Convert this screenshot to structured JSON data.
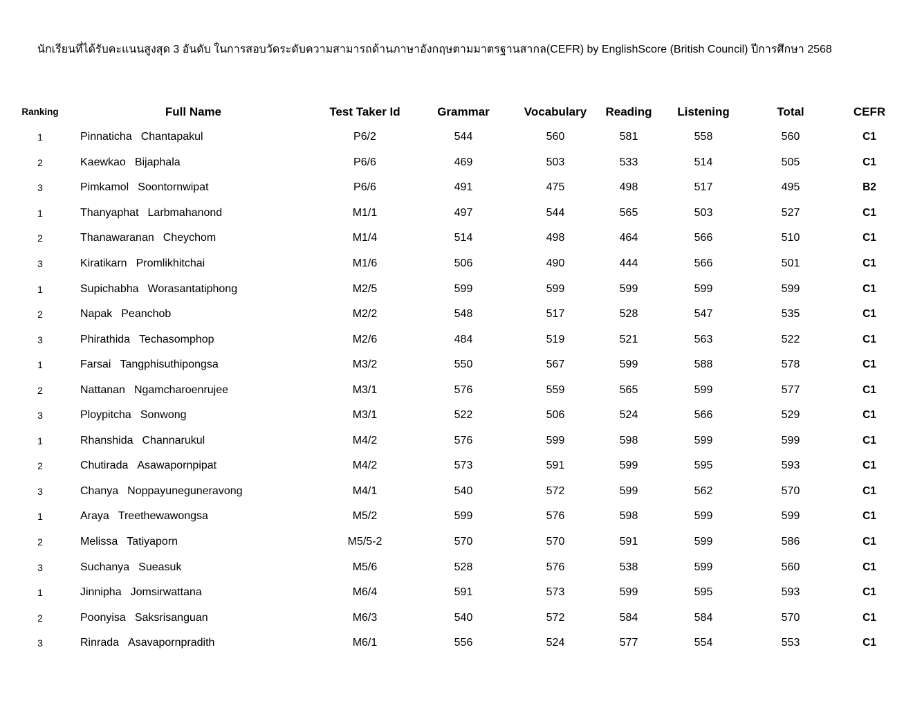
{
  "document": {
    "title": "นักเรียนที่ได้รับคะแนนสูงสุด 3 อันดับ ในการสอบวัดระดับความสามารถด้านภาษาอังกฤษตามมาตรฐานสากล(CEFR) by EnglishScore (British Council) ปีการศึกษา 2568"
  },
  "table": {
    "headers": [
      "Ranking",
      "Full Name",
      "Test Taker Id",
      "Grammar",
      "Vocabulary",
      "Reading",
      "Listening",
      "Total",
      "CEFR"
    ],
    "rows": [
      {
        "rank": "1",
        "first": "Pinnaticha",
        "last": "Chantapakul",
        "id": "P6/2",
        "grammar": "544",
        "vocabulary": "560",
        "reading": "581",
        "listening": "558",
        "total": "560",
        "cefr": "C1"
      },
      {
        "rank": "2",
        "first": "Kaewkao",
        "last": "Bijaphala",
        "id": "P6/6",
        "grammar": "469",
        "vocabulary": "503",
        "reading": "533",
        "listening": "514",
        "total": "505",
        "cefr": "C1"
      },
      {
        "rank": "3",
        "first": "Pimkamol",
        "last": "Soontornwipat",
        "id": "P6/6",
        "grammar": "491",
        "vocabulary": "475",
        "reading": "498",
        "listening": "517",
        "total": "495",
        "cefr": "B2"
      },
      {
        "rank": "1",
        "first": "Thanyaphat",
        "last": "Larbmahanond",
        "id": "M1/1",
        "grammar": "497",
        "vocabulary": "544",
        "reading": "565",
        "listening": "503",
        "total": "527",
        "cefr": "C1"
      },
      {
        "rank": "2",
        "first": "Thanawaranan",
        "last": "Cheychom",
        "id": "M1/4",
        "grammar": "514",
        "vocabulary": "498",
        "reading": "464",
        "listening": "566",
        "total": "510",
        "cefr": "C1"
      },
      {
        "rank": "3",
        "first": "Kiratikarn",
        "last": "Promlikhitchai",
        "id": "M1/6",
        "grammar": "506",
        "vocabulary": "490",
        "reading": "444",
        "listening": "566",
        "total": "501",
        "cefr": "C1"
      },
      {
        "rank": "1",
        "first": "Supichabha",
        "last": "Worasantatiphong",
        "id": "M2/5",
        "grammar": "599",
        "vocabulary": "599",
        "reading": "599",
        "listening": "599",
        "total": "599",
        "cefr": "C1"
      },
      {
        "rank": "2",
        "first": "Napak",
        "last": "Peanchob",
        "id": "M2/2",
        "grammar": "548",
        "vocabulary": "517",
        "reading": "528",
        "listening": "547",
        "total": "535",
        "cefr": "C1"
      },
      {
        "rank": "3",
        "first": "Phirathida",
        "last": "Techasomphop",
        "id": "M2/6",
        "grammar": "484",
        "vocabulary": "519",
        "reading": "521",
        "listening": "563",
        "total": "522",
        "cefr": "C1"
      },
      {
        "rank": "1",
        "first": "Farsai",
        "last": "Tangphisuthipongsa",
        "id": "M3/2",
        "grammar": "550",
        "vocabulary": "567",
        "reading": "599",
        "listening": "588",
        "total": "578",
        "cefr": "C1"
      },
      {
        "rank": "2",
        "first": "Nattanan",
        "last": "Ngamcharoenrujee",
        "id": "M3/1",
        "grammar": "576",
        "vocabulary": "559",
        "reading": "565",
        "listening": "599",
        "total": "577",
        "cefr": "C1"
      },
      {
        "rank": "3",
        "first": "Ploypitcha",
        "last": "Sonwong",
        "id": "M3/1",
        "grammar": "522",
        "vocabulary": "506",
        "reading": "524",
        "listening": "566",
        "total": "529",
        "cefr": "C1"
      },
      {
        "rank": "1",
        "first": "Rhanshida",
        "last": "Channarukul",
        "id": "M4/2",
        "grammar": "576",
        "vocabulary": "599",
        "reading": "598",
        "listening": "599",
        "total": "599",
        "cefr": "C1"
      },
      {
        "rank": "2",
        "first": "Chutirada",
        "last": "Asawapornpipat",
        "id": "M4/2",
        "grammar": "573",
        "vocabulary": "591",
        "reading": "599",
        "listening": "595",
        "total": "593",
        "cefr": "C1"
      },
      {
        "rank": "3",
        "first": "Chanya",
        "last": "Noppayuneguneravong",
        "id": "M4/1",
        "grammar": "540",
        "vocabulary": "572",
        "reading": "599",
        "listening": "562",
        "total": "570",
        "cefr": "C1"
      },
      {
        "rank": "1",
        "first": "Araya",
        "last": "Treethewawongsa",
        "id": "M5/2",
        "grammar": "599",
        "vocabulary": "576",
        "reading": "598",
        "listening": "599",
        "total": "599",
        "cefr": "C1"
      },
      {
        "rank": "2",
        "first": "Melissa",
        "last": "Tatiyaporn",
        "id": "M5/5-2",
        "grammar": "570",
        "vocabulary": "570",
        "reading": "591",
        "listening": "599",
        "total": "586",
        "cefr": "C1"
      },
      {
        "rank": "3",
        "first": "Suchanya",
        "last": "Sueasuk",
        "id": "M5/6",
        "grammar": "528",
        "vocabulary": "576",
        "reading": "538",
        "listening": "599",
        "total": "560",
        "cefr": "C1"
      },
      {
        "rank": "1",
        "first": "Jinnipha",
        "last": "Jomsirwattana",
        "id": "M6/4",
        "grammar": "591",
        "vocabulary": "573",
        "reading": "599",
        "listening": "595",
        "total": "593",
        "cefr": "C1"
      },
      {
        "rank": "2",
        "first": "Poonyisa",
        "last": "Saksrisanguan",
        "id": "M6/3",
        "grammar": "540",
        "vocabulary": "572",
        "reading": "584",
        "listening": "584",
        "total": "570",
        "cefr": "C1"
      },
      {
        "rank": "3",
        "first": "Rinrada",
        "last": "Asavapornpradith",
        "id": "M6/1",
        "grammar": "556",
        "vocabulary": "524",
        "reading": "577",
        "listening": "554",
        "total": "553",
        "cefr": "C1"
      }
    ]
  }
}
